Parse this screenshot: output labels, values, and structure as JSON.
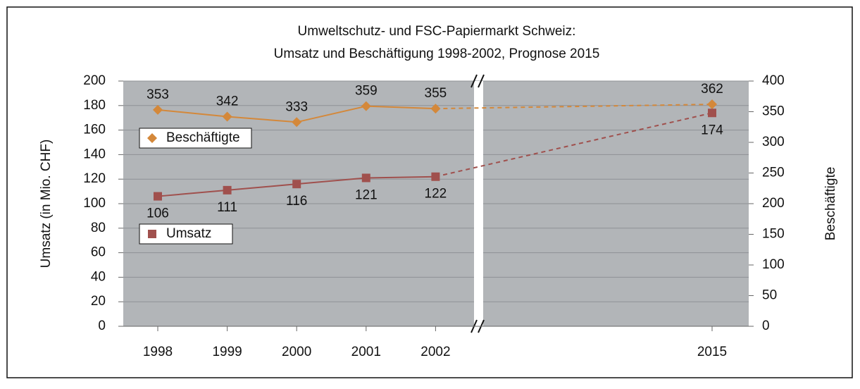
{
  "chart_data": {
    "type": "line",
    "title": [
      "Umweltschutz- und FSC-Papiermarkt Schweiz:",
      "Umsatz und Beschäftigung 1998-2002, Prognose 2015"
    ],
    "categories": [
      "1998",
      "1999",
      "2000",
      "2001",
      "2002",
      "2015"
    ],
    "series": [
      {
        "name": "Beschäftigte",
        "color": "#d4883a",
        "marker": "diamond",
        "axis": "y2",
        "values": [
          353,
          342,
          333,
          359,
          355,
          362
        ]
      },
      {
        "name": "Umsatz",
        "color": "#a0504d",
        "marker": "square",
        "values": [
          106,
          111,
          116,
          121,
          122,
          174
        ]
      }
    ],
    "ylabel": "Umsatz (in Mio. CHF)",
    "y2label": "Beschäftigte",
    "ylim": [
      0,
      200
    ],
    "yticks": [
      0,
      20,
      40,
      60,
      80,
      100,
      120,
      140,
      160,
      180,
      200
    ],
    "y2lim": [
      0,
      400
    ],
    "y2ticks": [
      0,
      50,
      100,
      150,
      200,
      250,
      300,
      350,
      400
    ],
    "grid": true
  }
}
